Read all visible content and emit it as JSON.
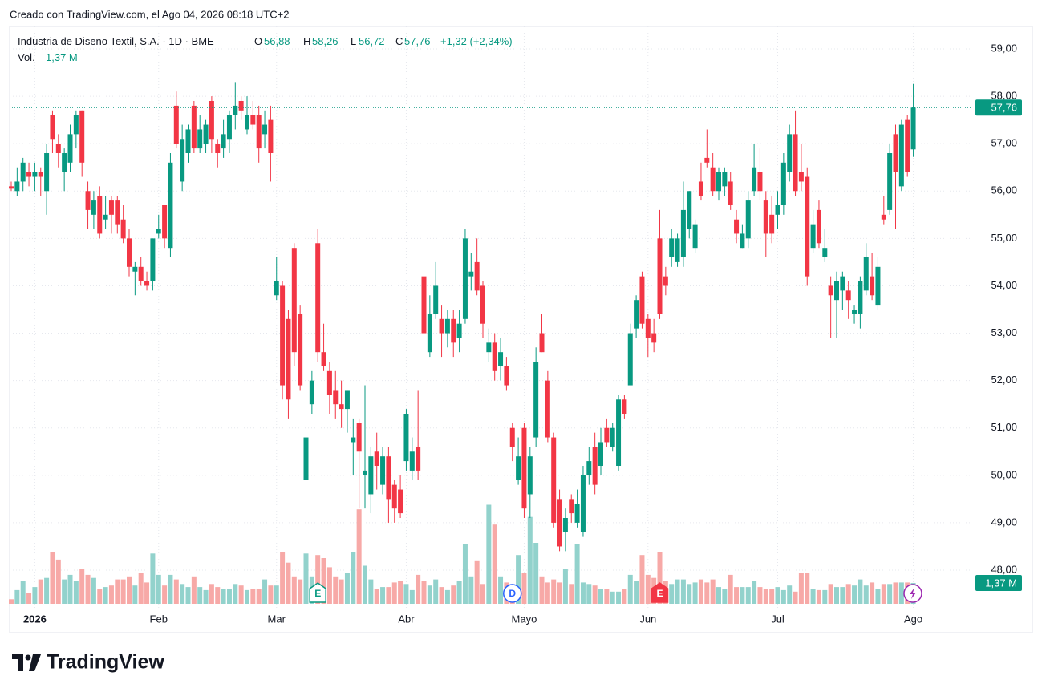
{
  "chart_data": {
    "type": "candlestick",
    "created": "Creado con TradingView.com, el Ago 04, 2026 08:18 UTC+2",
    "title": "Industria de Diseno Textil, S.A. · 1D · BME",
    "legend": {
      "o": "O",
      "o_value": {
        "value": 56.88,
        "label": "56,88"
      },
      "h": "H",
      "h_value": {
        "value": 58.26,
        "label": "58,26"
      },
      "l": "L",
      "l_value": {
        "value": 56.72,
        "label": "56,72"
      },
      "c": "C",
      "c_value": {
        "value": 57.76,
        "label": "57,76"
      },
      "change": "+1,32 (+2,34%)",
      "vol": "Vol.",
      "vol_value": {
        "value": 1.37,
        "label": "1,37 M"
      }
    },
    "brand": "TradingView",
    "up_color": "#089981",
    "down_color": "#f23645",
    "volume_up_color": "#92d2cc",
    "volume_down_color": "#f7a9a7",
    "grid": true,
    "categories": [
      null,
      null,
      null,
      null,
      "2026",
      null,
      null,
      null,
      null,
      null,
      null,
      null,
      null,
      null,
      null,
      null,
      null,
      null,
      null,
      null,
      null,
      null,
      null,
      null,
      null,
      "Feb",
      null,
      null,
      null,
      null,
      null,
      null,
      null,
      null,
      null,
      null,
      null,
      null,
      null,
      null,
      null,
      null,
      null,
      null,
      null,
      "Mar",
      null,
      null,
      null,
      null,
      null,
      null,
      null,
      null,
      null,
      null,
      null,
      null,
      null,
      null,
      null,
      null,
      null,
      null,
      null,
      null,
      null,
      "Abr",
      null,
      null,
      null,
      null,
      null,
      null,
      null,
      null,
      null,
      null,
      null,
      null,
      null,
      null,
      null,
      null,
      null,
      null,
      null,
      "Mayo",
      null,
      null,
      null,
      null,
      null,
      null,
      null,
      null,
      null,
      null,
      null,
      null,
      null,
      null,
      null,
      null,
      null,
      null,
      null,
      null,
      "Jun",
      null,
      null,
      null,
      null,
      null,
      null,
      null,
      null,
      null,
      null,
      null,
      null,
      null,
      null,
      null,
      null,
      null,
      null,
      null,
      null,
      null,
      "Jul",
      null,
      null,
      null,
      null,
      null,
      null,
      null,
      null,
      null,
      null,
      null,
      null,
      null,
      null,
      null,
      null,
      null,
      null,
      null,
      null,
      null,
      null,
      "Ago"
    ],
    "open": [
      56.1,
      56.0,
      56.2,
      56.4,
      56.3,
      56.4,
      56.0,
      57.6,
      57.0,
      56.4,
      56.6,
      57.2,
      57.7,
      56.0,
      55.5,
      55.9,
      55.4,
      55.8,
      55.8,
      55.4,
      55.0,
      54.3,
      54.4,
      54.1,
      54.1,
      55.1,
      55.7,
      54.8,
      57.8,
      56.2,
      56.8,
      57.8,
      56.9,
      57.0,
      57.9,
      57.0,
      56.9,
      57.1,
      57.6,
      57.9,
      57.3,
      57.6,
      57.6,
      57.2,
      57.5,
      53.8,
      54.0,
      53.3,
      54.8,
      53.4,
      49.9,
      51.5,
      54.9,
      52.6,
      52.2,
      51.8,
      51.5,
      51.4,
      50.7,
      51.1,
      50.0,
      49.6,
      50.5,
      49.8,
      50.4,
      49.8,
      49.7,
      50.3,
      50.1,
      50.6,
      54.2,
      52.6,
      53.4,
      53.3,
      53.0,
      53.3,
      52.9,
      53.3,
      54.2,
      54.5,
      54.0,
      52.6,
      52.8,
      52.3,
      52.3,
      51.0,
      49.9,
      51.0,
      49.6,
      50.8,
      53.0,
      52.0,
      50.8,
      49.5,
      48.8,
      49.5,
      49.0,
      48.8,
      50.0,
      50.6,
      50.2,
      51.0,
      50.6,
      50.2,
      51.6,
      51.9,
      53.1,
      54.2,
      53.3,
      53.0,
      55.0,
      54.2,
      54.6,
      54.5,
      54.6,
      55.2,
      54.8,
      56.2,
      56.7,
      56.5,
      56.0,
      56.1,
      56.2,
      55.4,
      54.8,
      55.0,
      56.0,
      56.4,
      55.8,
      55.5,
      55.5,
      55.7,
      56.4,
      57.2,
      56.4,
      56.3,
      54.8,
      55.6,
      54.6,
      54.0,
      53.7,
      53.9,
      53.9,
      53.4,
      53.4,
      53.9,
      54.2,
      53.6,
      55.5,
      55.6,
      57.2,
      56.1,
      57.5,
      56.88
    ],
    "high": [
      56.2,
      56.5,
      56.7,
      56.6,
      56.6,
      56.5,
      57.0,
      57.7,
      57.2,
      56.9,
      57.4,
      57.7,
      57.7,
      56.2,
      56.0,
      56.1,
      55.9,
      55.9,
      55.9,
      55.7,
      55.2,
      54.5,
      54.6,
      54.3,
      55.0,
      55.5,
      55.7,
      56.8,
      58.1,
      57.4,
      57.4,
      57.9,
      57.6,
      57.5,
      58.0,
      57.1,
      57.5,
      57.7,
      58.3,
      58.0,
      58.0,
      57.9,
      57.8,
      57.7,
      57.8,
      54.6,
      54.1,
      53.5,
      54.9,
      53.6,
      51.0,
      52.2,
      55.2,
      53.2,
      52.4,
      52.2,
      52.0,
      51.8,
      51.2,
      51.2,
      51.9,
      50.6,
      50.9,
      50.6,
      50.6,
      49.9,
      50.0,
      51.4,
      50.8,
      51.8,
      54.3,
      53.8,
      54.5,
      53.6,
      53.5,
      53.5,
      53.5,
      55.2,
      54.7,
      55.0,
      54.1,
      53.1,
      53.0,
      52.9,
      52.5,
      51.1,
      50.8,
      51.1,
      50.6,
      52.7,
      53.4,
      52.2,
      50.9,
      49.7,
      49.3,
      49.6,
      49.7,
      50.2,
      50.6,
      50.9,
      51.0,
      51.2,
      51.1,
      51.7,
      51.7,
      53.2,
      53.8,
      54.3,
      53.4,
      53.3,
      55.6,
      54.4,
      55.2,
      55.1,
      56.2,
      56.0,
      55.4,
      56.6,
      57.3,
      56.8,
      56.5,
      56.5,
      56.4,
      55.6,
      55.3,
      56.0,
      57.0,
      56.9,
      56.0,
      55.9,
      56.0,
      56.8,
      57.4,
      57.7,
      57.0,
      56.5,
      55.6,
      55.8,
      55.2,
      54.2,
      54.3,
      54.3,
      54.1,
      53.6,
      54.2,
      54.9,
      54.7,
      54.6,
      55.9,
      57.0,
      57.4,
      57.5,
      57.6,
      58.26
    ],
    "low": [
      56.0,
      55.9,
      56.0,
      56.1,
      56.0,
      55.9,
      55.5,
      56.8,
      56.5,
      56.0,
      56.4,
      56.9,
      56.3,
      55.2,
      55.2,
      55.0,
      55.2,
      55.1,
      55.1,
      54.9,
      54.2,
      53.8,
      54.0,
      53.9,
      53.9,
      55.0,
      54.8,
      54.6,
      56.9,
      56.0,
      56.6,
      56.8,
      56.8,
      56.8,
      56.8,
      56.5,
      56.7,
      56.8,
      57.3,
      57.5,
      57.2,
      57.3,
      56.6,
      56.9,
      56.2,
      53.7,
      51.6,
      51.2,
      52.3,
      51.8,
      49.8,
      51.3,
      52.4,
      52.2,
      51.3,
      51.2,
      51.0,
      50.9,
      50.0,
      49.3,
      49.3,
      49.2,
      49.7,
      49.6,
      49.0,
      49.0,
      49.1,
      50.1,
      49.9,
      49.9,
      52.4,
      52.5,
      53.3,
      52.5,
      52.7,
      52.5,
      52.6,
      53.2,
      53.9,
      53.8,
      52.9,
      52.4,
      52.0,
      52.0,
      51.8,
      50.3,
      49.8,
      49.1,
      49.1,
      50.6,
      52.6,
      50.7,
      48.9,
      48.4,
      48.4,
      49.0,
      48.9,
      48.7,
      49.8,
      49.6,
      50.0,
      50.6,
      50.5,
      50.1,
      51.2,
      51.9,
      52.9,
      53.1,
      52.5,
      52.6,
      53.3,
      53.8,
      54.4,
      54.4,
      54.4,
      55.0,
      54.7,
      55.8,
      56.5,
      55.9,
      55.8,
      55.9,
      55.6,
      54.9,
      54.8,
      54.8,
      55.9,
      55.8,
      54.6,
      54.9,
      55.2,
      55.5,
      56.2,
      55.9,
      56.0,
      54.0,
      54.7,
      54.8,
      54.5,
      52.9,
      52.9,
      53.5,
      53.3,
      53.2,
      53.1,
      53.8,
      53.7,
      53.5,
      55.3,
      55.5,
      55.2,
      56.0,
      56.3,
      56.72
    ],
    "close": [
      56.05,
      56.2,
      56.6,
      56.3,
      56.4,
      56.3,
      56.8,
      57.1,
      56.8,
      56.8,
      57.2,
      57.6,
      56.6,
      55.6,
      55.8,
      55.1,
      55.5,
      55.5,
      55.3,
      55.0,
      54.4,
      54.4,
      54.1,
      54.0,
      55.0,
      55.2,
      55.0,
      56.6,
      57.0,
      57.1,
      57.3,
      56.9,
      57.3,
      57.4,
      57.1,
      56.8,
      57.2,
      57.6,
      57.8,
      57.7,
      57.6,
      57.4,
      56.9,
      57.4,
      56.8,
      54.1,
      51.9,
      51.6,
      52.6,
      51.9,
      50.8,
      52.0,
      52.6,
      52.3,
      51.7,
      51.5,
      51.4,
      51.8,
      50.8,
      50.5,
      50.1,
      50.4,
      50.2,
      50.4,
      49.5,
      49.3,
      49.2,
      51.3,
      50.5,
      50.1,
      53.0,
      53.4,
      54.0,
      53.0,
      53.3,
      52.8,
      53.2,
      55.0,
      54.3,
      53.9,
      53.2,
      52.8,
      52.2,
      52.6,
      51.9,
      50.6,
      50.4,
      49.3,
      50.4,
      52.4,
      52.6,
      50.8,
      49.0,
      48.5,
      49.1,
      49.2,
      49.4,
      50.0,
      50.3,
      49.8,
      50.7,
      50.7,
      51.0,
      51.6,
      51.3,
      53.0,
      53.7,
      53.2,
      52.9,
      52.8,
      53.4,
      54.0,
      55.0,
      55.0,
      55.6,
      56.0,
      55.3,
      55.9,
      56.6,
      56.0,
      56.4,
      56.4,
      55.7,
      55.1,
      55.1,
      55.8,
      56.5,
      56.0,
      55.1,
      55.1,
      55.7,
      56.6,
      57.2,
      56.0,
      56.2,
      54.2,
      55.3,
      54.9,
      54.8,
      53.8,
      54.1,
      54.2,
      53.7,
      53.5,
      54.1,
      54.6,
      53.8,
      54.4,
      55.4,
      56.8,
      56.4,
      57.4,
      56.4,
      57.76
    ],
    "volume": [
      0.3,
      0.9,
      1.5,
      0.7,
      1.1,
      1.6,
      1.7,
      3.4,
      2.9,
      1.6,
      1.9,
      1.5,
      2.3,
      1.9,
      1.7,
      1.0,
      1.1,
      1.2,
      1.6,
      1.6,
      1.8,
      1.2,
      2.0,
      1.4,
      3.3,
      1.9,
      1.2,
      1.9,
      1.6,
      1.3,
      1.1,
      1.8,
      1.1,
      0.9,
      1.3,
      1.1,
      1.0,
      1.0,
      1.3,
      1.2,
      0.9,
      1.0,
      1.0,
      1.6,
      1.2,
      1.2,
      3.4,
      2.7,
      1.8,
      1.6,
      3.3,
      1.8,
      3.2,
      3.0,
      2.4,
      1.8,
      1.6,
      2.0,
      3.4,
      6.2,
      2.5,
      1.6,
      1.0,
      1.1,
      1.1,
      1.4,
      1.5,
      1.3,
      0.9,
      1.9,
      1.5,
      1.2,
      1.6,
      1.1,
      0.9,
      1.2,
      1.5,
      3.9,
      1.8,
      2.8,
      1.3,
      6.5,
      5.2,
      1.8,
      1.4,
      1.1,
      3.2,
      2.0,
      5.7,
      4.0,
      1.8,
      1.4,
      1.6,
      1.4,
      2.3,
      1.3,
      3.9,
      1.4,
      1.3,
      1.2,
      1.0,
      1.0,
      0.8,
      0.8,
      1.0,
      1.9,
      1.5,
      3.2,
      1.9,
      1.7,
      3.4,
      1.5,
      1.3,
      1.6,
      1.6,
      1.3,
      1.4,
      1.6,
      1.4,
      1.6,
      1.1,
      1.0,
      1.9,
      1.1,
      1.1,
      1.1,
      1.5,
      1.1,
      1.0,
      1.0,
      1.1,
      0.9,
      1.2,
      0.8,
      2.0,
      2.0,
      1.0,
      0.9,
      0.9,
      1.3,
      1.1,
      1.1,
      1.3,
      1.2,
      1.6,
      1.2,
      1.4,
      1.0,
      1.3,
      1.3,
      1.4,
      1.4,
      1.4,
      1.37
    ],
    "ylim": [
      47.1,
      59.45
    ],
    "yticks": [
      {
        "value": 48,
        "label": "48,00"
      },
      {
        "value": 49,
        "label": "49,00"
      },
      {
        "value": 50,
        "label": "50,00"
      },
      {
        "value": 51,
        "label": "51,00"
      },
      {
        "value": 52,
        "label": "52,00"
      },
      {
        "value": 53,
        "label": "53,00"
      },
      {
        "value": 54,
        "label": "54,00"
      },
      {
        "value": 55,
        "label": "55,00"
      },
      {
        "value": 56,
        "label": "56,00"
      },
      {
        "value": 57,
        "label": "57,00"
      },
      {
        "value": 58,
        "label": "58,00"
      },
      {
        "value": 59,
        "label": "59,00"
      }
    ],
    "last_price": {
      "value": 57.76,
      "label": "57,76"
    },
    "last_volume": {
      "value": 1.37,
      "label": "1,37 M"
    },
    "events": [
      {
        "index": 52,
        "label": "E",
        "color": "#089981",
        "shape": "badge"
      },
      {
        "index": 85,
        "label": "D",
        "color": "#2962ff",
        "shape": "circle"
      },
      {
        "index": 110,
        "label": "E",
        "color": "#f23645",
        "shape": "badge"
      }
    ]
  }
}
